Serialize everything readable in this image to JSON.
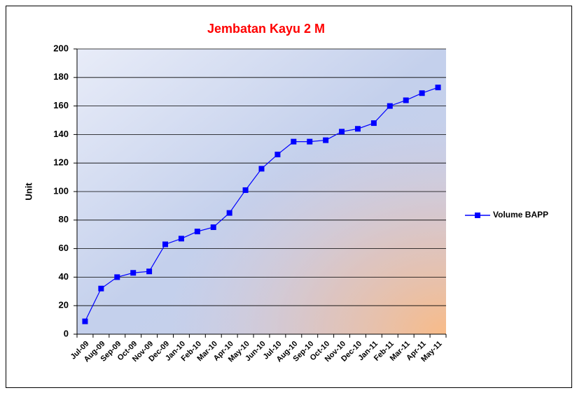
{
  "chart_data": {
    "type": "line",
    "title": "Jembatan Kayu 2 M",
    "y_label": "Unit",
    "categories": [
      "Jul-09",
      "Aug-09",
      "Sep-09",
      "Oct-09",
      "Nov-09",
      "Dec-09",
      "Jan-10",
      "Feb-10",
      "Mar-10",
      "Apr-10",
      "May-10",
      "Jun-10",
      "Jul-10",
      "Aug-10",
      "Sep-10",
      "Oct-10",
      "Nov-10",
      "Dec-10",
      "Jan-11",
      "Feb-11",
      "Mar-11",
      "Apr-11",
      "May-11"
    ],
    "series": [
      {
        "name": "Volume BAPP",
        "color": "#0000ff",
        "values": [
          9,
          32,
          40,
          43,
          44,
          63,
          67,
          72,
          75,
          85,
          101,
          116,
          126,
          135,
          135,
          136,
          142,
          144,
          148,
          160,
          164,
          169,
          173
        ]
      }
    ],
    "ylim": [
      0,
      200
    ],
    "yticks": [
      0,
      20,
      40,
      60,
      80,
      100,
      120,
      140,
      160,
      180,
      200
    ],
    "grid": true,
    "legend": "right"
  }
}
